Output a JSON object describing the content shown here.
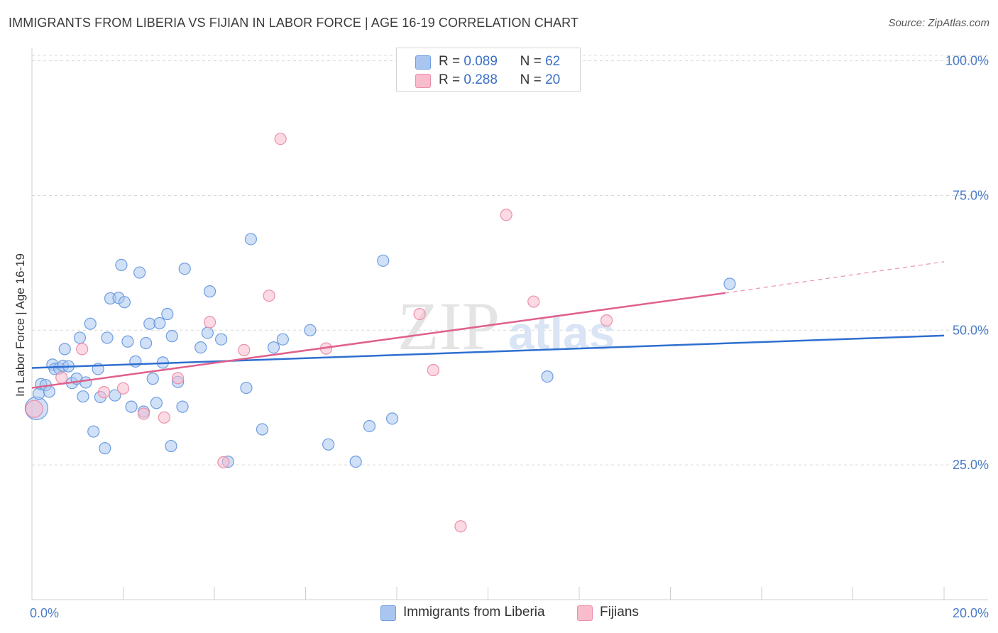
{
  "header": {
    "title": "IMMIGRANTS FROM LIBERIA VS FIJIAN IN LABOR FORCE | AGE 16-19 CORRELATION CHART",
    "source": "Source: ZipAtlas.com"
  },
  "watermark": {
    "zip": "ZIP",
    "atlas": "atlas"
  },
  "legend": {
    "rows": [
      {
        "r_label": "R =",
        "r_value": "0.089",
        "n_label": "N =",
        "n_value": "62"
      },
      {
        "r_label": "R =",
        "r_value": "0.288",
        "n_label": "N =",
        "n_value": "20"
      }
    ]
  },
  "bottom_legend": {
    "liberia": "Immigrants from Liberia",
    "fijians": "Fijians"
  },
  "colors": {
    "liberia_fill": "#a9c6f0",
    "liberia_stroke": "#6d9de0",
    "liberia_line": "#2e6fd0",
    "fijians_fill": "#f8bccd",
    "fijians_stroke": "#ec8faa",
    "fijians_line": "#e0618d",
    "tick_text": "#4a7cc9",
    "grid": "#d9d9d9"
  },
  "chart_data": {
    "type": "scatter",
    "title": "IMMIGRANTS FROM LIBERIA VS FIJIAN IN LABOR FORCE | AGE 16-19 CORRELATION CHART",
    "xlabel": "",
    "ylabel": "In Labor Force | Age 16-19",
    "xlim": [
      0,
      20
    ],
    "ylim": [
      0,
      101
    ],
    "x_tick_labels": [
      {
        "value": 0,
        "label": "0.0%"
      },
      {
        "value": 20,
        "label": "20.0%"
      }
    ],
    "y_tick_labels": [
      {
        "value": 100,
        "label": "100.0%"
      },
      {
        "value": 75,
        "label": "75.0%"
      },
      {
        "value": 50,
        "label": "50.0%"
      },
      {
        "value": 25,
        "label": "25.0%"
      }
    ],
    "series": [
      {
        "name": "Immigrants from Liberia",
        "R": 0.089,
        "N": 62,
        "trend": {
          "x0": 0,
          "y0": 43.0,
          "x1": 20,
          "y1": 49.0
        },
        "points": [
          [
            0.1,
            35.5,
            16
          ],
          [
            0.15,
            38.2,
            8
          ],
          [
            0.2,
            40.0,
            8
          ],
          [
            0.3,
            39.8,
            8
          ],
          [
            0.38,
            38.6,
            8
          ],
          [
            0.45,
            43.6,
            8
          ],
          [
            0.5,
            42.8,
            8
          ],
          [
            0.6,
            42.9,
            8
          ],
          [
            0.68,
            43.4,
            8
          ],
          [
            0.72,
            46.5,
            8
          ],
          [
            0.8,
            43.3,
            8
          ],
          [
            0.88,
            40.2,
            8
          ],
          [
            0.98,
            41.0,
            8
          ],
          [
            1.05,
            48.6,
            8
          ],
          [
            1.12,
            37.7,
            8
          ],
          [
            1.18,
            40.3,
            8
          ],
          [
            1.28,
            51.2,
            8
          ],
          [
            1.35,
            31.2,
            8
          ],
          [
            1.45,
            42.8,
            8
          ],
          [
            1.5,
            37.6,
            8
          ],
          [
            1.6,
            28.1,
            8
          ],
          [
            1.65,
            48.6,
            8
          ],
          [
            1.72,
            55.9,
            8
          ],
          [
            1.82,
            37.9,
            8
          ],
          [
            1.9,
            56.0,
            8
          ],
          [
            1.96,
            62.1,
            8
          ],
          [
            2.03,
            55.2,
            8
          ],
          [
            2.1,
            47.9,
            8
          ],
          [
            2.18,
            35.8,
            8
          ],
          [
            2.27,
            44.2,
            8
          ],
          [
            2.36,
            60.7,
            8
          ],
          [
            2.45,
            34.9,
            8
          ],
          [
            2.5,
            47.6,
            8
          ],
          [
            2.58,
            51.2,
            8
          ],
          [
            2.65,
            41.0,
            8
          ],
          [
            2.73,
            36.5,
            8
          ],
          [
            2.8,
            51.3,
            8
          ],
          [
            2.87,
            44.0,
            8
          ],
          [
            2.97,
            53.0,
            8
          ],
          [
            3.05,
            28.5,
            8
          ],
          [
            3.07,
            48.9,
            8
          ],
          [
            3.2,
            40.4,
            8
          ],
          [
            3.3,
            35.8,
            8
          ],
          [
            3.35,
            61.4,
            8
          ],
          [
            3.7,
            46.8,
            8
          ],
          [
            3.85,
            49.5,
            8
          ],
          [
            3.9,
            57.2,
            8
          ],
          [
            4.15,
            48.3,
            8
          ],
          [
            4.3,
            25.6,
            8
          ],
          [
            4.7,
            39.3,
            8
          ],
          [
            4.8,
            66.9,
            8
          ],
          [
            5.05,
            31.6,
            8
          ],
          [
            5.3,
            46.8,
            8
          ],
          [
            5.5,
            48.3,
            8
          ],
          [
            6.1,
            50.0,
            8
          ],
          [
            6.5,
            28.8,
            8
          ],
          [
            7.1,
            25.6,
            8
          ],
          [
            7.4,
            32.2,
            8
          ],
          [
            7.7,
            62.9,
            8
          ],
          [
            7.9,
            33.6,
            8
          ],
          [
            11.3,
            41.4,
            8
          ],
          [
            15.3,
            58.6,
            8
          ]
        ]
      },
      {
        "name": "Fijians",
        "R": 0.288,
        "N": 20,
        "trend": {
          "x0": 0,
          "y0": 39.3,
          "x1": 15.2,
          "y1": 56.9,
          "dashed_to_x": 20,
          "dashed_to_y": 62.7
        },
        "points": [
          [
            0.05,
            35.4,
            12
          ],
          [
            0.65,
            41.2,
            8
          ],
          [
            1.1,
            46.5,
            8
          ],
          [
            1.58,
            38.5,
            8
          ],
          [
            2.0,
            39.2,
            8
          ],
          [
            2.45,
            34.5,
            8
          ],
          [
            2.9,
            33.8,
            8
          ],
          [
            3.2,
            41.1,
            8
          ],
          [
            3.9,
            51.5,
            8
          ],
          [
            4.2,
            25.5,
            8
          ],
          [
            4.65,
            46.3,
            8
          ],
          [
            5.2,
            56.4,
            8
          ],
          [
            5.45,
            85.5,
            8
          ],
          [
            6.45,
            46.6,
            8
          ],
          [
            8.5,
            53.0,
            8
          ],
          [
            8.8,
            42.6,
            8
          ],
          [
            9.4,
            13.6,
            8
          ],
          [
            10.4,
            71.4,
            8
          ],
          [
            11.0,
            55.3,
            8
          ],
          [
            12.6,
            51.8,
            8
          ]
        ]
      }
    ]
  }
}
